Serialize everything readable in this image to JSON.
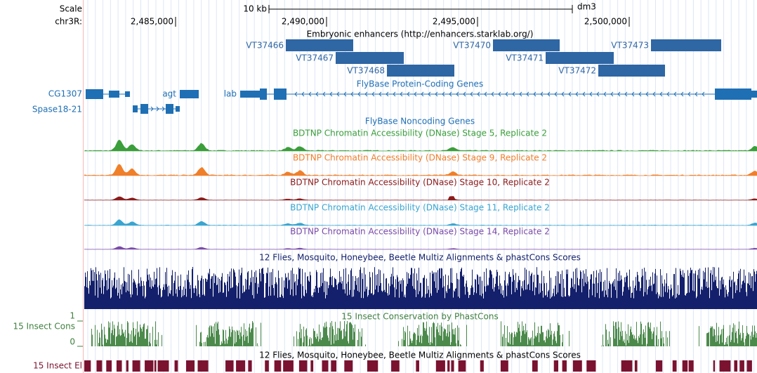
{
  "header": {
    "scale_label": "Scale",
    "chrom_label": "chr3R:",
    "ruler_text": "10 kb",
    "assembly": "dm3",
    "positions": [
      "2,485,000",
      "2,490,000",
      "2,495,000",
      "2,500,000"
    ]
  },
  "enhancers": {
    "title": "Embryonic enhancers (http://enhancers.starklab.org/)",
    "items": [
      "VT37466",
      "VT37467",
      "VT37468",
      "VT37470",
      "VT37471",
      "VT37472",
      "VT37473"
    ]
  },
  "genes": {
    "title": "FlyBase Protein-Coding Genes",
    "names": [
      "CG1307",
      "Spase18-21",
      "agt",
      "lab"
    ]
  },
  "noncoding": {
    "title": "FlyBase Noncoding Genes"
  },
  "dnase_tracks": [
    "BDTNP Chromatin Accessibility (DNase) Stage 5, Replicate 2",
    "BDTNP Chromatin Accessibility (DNase) Stage 9, Replicate 2",
    "BDTNP Chromatin Accessibility (DNase) Stage 10, Replicate 2",
    "BDTNP Chromatin Accessibility (DNase) Stage 11, Replicate 2",
    "BDTNP Chromatin Accessibility (DNase) Stage 14, Replicate 2"
  ],
  "multiz": {
    "title": "12 Flies, Mosquito, Honeybee, Beetle Multiz Alignments & phastCons Scores"
  },
  "phastcons": {
    "title": "15 Insect Conservation by PhastCons",
    "side_label": "15 Insect Cons",
    "max_label": "1",
    "min_label": "0"
  },
  "elements": {
    "title": "12 Flies, Mosquito, Honeybee, Beetle Multiz Alignments & phastCons Scores",
    "side_label": "15 Insect El"
  }
}
